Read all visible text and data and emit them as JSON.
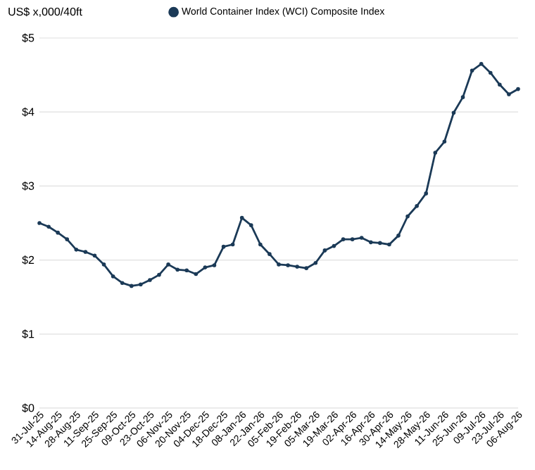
{
  "chart_data": {
    "type": "line",
    "ylabel": "US$ x,000/40ft",
    "categories": [
      "31-Jul-25",
      null,
      "14-Aug-25",
      null,
      "28-Aug-25",
      null,
      "11-Sep-25",
      null,
      "25-Sep-25",
      null,
      "09-Oct-25",
      null,
      "23-Oct-25",
      null,
      "06-Nov-25",
      null,
      "20-Nov-25",
      null,
      "04-Dec-25",
      null,
      "18-Dec-25",
      null,
      "08-Jan-26",
      null,
      "22-Jan-26",
      null,
      "05-Feb-26",
      null,
      "19-Feb-26",
      null,
      "05-Mar-26",
      null,
      "19-Mar-26",
      null,
      "02-Apr-26",
      null,
      "16-Apr-26",
      null,
      "30-Apr-26",
      null,
      "14-May-26",
      null,
      "28-May-26",
      null,
      "11-Jun-26",
      null,
      "25-Jun-26",
      null,
      "09-Jul-26",
      null,
      "23-Jul-26",
      null,
      "06-Aug-26"
    ],
    "series": [
      {
        "name": "World Container Index (WCI) Composite Index",
        "color": "#1b3a57",
        "values": [
          2.5,
          2.45,
          2.37,
          2.28,
          2.14,
          2.11,
          2.06,
          1.94,
          1.78,
          1.69,
          1.65,
          1.67,
          1.73,
          1.8,
          1.94,
          1.87,
          1.86,
          1.81,
          1.9,
          1.93,
          2.18,
          2.21,
          2.57,
          2.47,
          2.21,
          2.08,
          1.94,
          1.93,
          1.91,
          1.89,
          1.96,
          2.13,
          2.19,
          2.28,
          2.28,
          2.3,
          2.24,
          2.23,
          2.21,
          2.33,
          2.59,
          2.73,
          2.9,
          3.45,
          3.6,
          3.99,
          4.2,
          4.56,
          4.65,
          4.53,
          4.37,
          4.24,
          4.31
        ]
      }
    ],
    "ylim": [
      0,
      5
    ],
    "yticks": [
      {
        "value": 0,
        "label": "$0"
      },
      {
        "value": 1,
        "label": "$1"
      },
      {
        "value": 2,
        "label": "$2"
      },
      {
        "value": 3,
        "label": "$3"
      },
      {
        "value": 4,
        "label": "$4"
      },
      {
        "value": 5,
        "label": "$5"
      }
    ],
    "grid": "y",
    "legend": "top",
    "marker": "circle"
  }
}
